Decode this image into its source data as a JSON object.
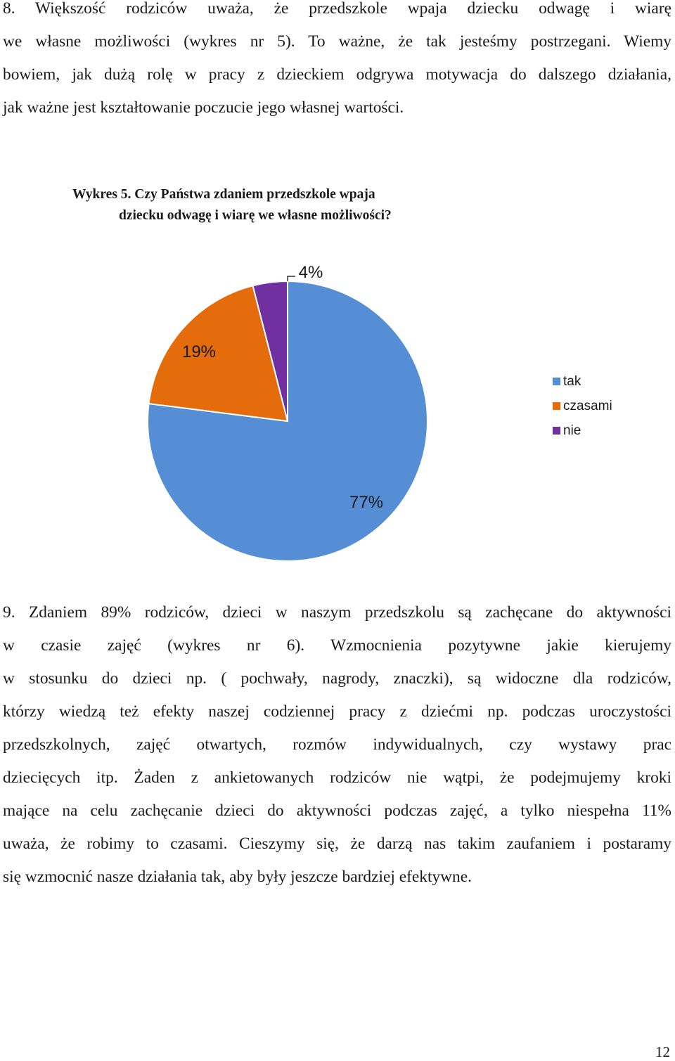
{
  "paragraph_8": {
    "lines": [
      "8.  Większość rodziców uważa, że przedszkole wpaja dziecku odwagę i wiarę",
      "we własne możliwości (wykres nr 5). To ważne,  że tak jesteśmy postrzegani. Wiemy",
      "bowiem, jak dużą rolę w pracy z dzieckiem odgrywa motywacja do dalszego działania,",
      "jak ważne jest kształtowanie poczucie jego własnej wartości."
    ]
  },
  "figure_caption": {
    "line1": "Wykres 5.  Czy Państwa zdaniem przedszkole wpaja",
    "line2": "dziecku odwagę i wiarę we własne możliwości?"
  },
  "chart_data": {
    "type": "pie",
    "categories": [
      "tak",
      "czasami",
      "nie"
    ],
    "values": [
      77,
      19,
      4
    ],
    "labels": [
      "77%",
      "19%",
      "4%"
    ],
    "colors": [
      "#558ed5",
      "#e46c0a",
      "#7030a0"
    ],
    "legend": "right"
  },
  "paragraph_9": {
    "lines": [
      "9. Zdaniem 89% rodziców, dzieci w naszym przedszkolu są zachęcane do aktywności",
      "w  czasie  zajęć  (wykres  nr  6).  Wzmocnienia  pozytywne  jakie  kierujemy",
      "w stosunku do dzieci np. ( pochwały, nagrody, znaczki), są widoczne dla rodziców,",
      "którzy wiedzą też efekty naszej codziennej pracy z dziećmi np. podczas uroczystości",
      "przedszkolnych, zajęć otwartych, rozmów indywidualnych, czy   wystawy prac",
      "dziecięcych itp. Żaden z ankietowanych rodziców nie wątpi, że podejmujemy kroki",
      "mające na celu zachęcanie dzieci do aktywności podczas zajęć, a tylko niespełna 11%",
      "uważa, że robimy to czasami. Cieszymy się, że darzą nas takim zaufaniem i postaramy",
      "się wzmocnić nasze działania tak, aby były jeszcze bardziej efektywne."
    ]
  },
  "page_number": "12"
}
